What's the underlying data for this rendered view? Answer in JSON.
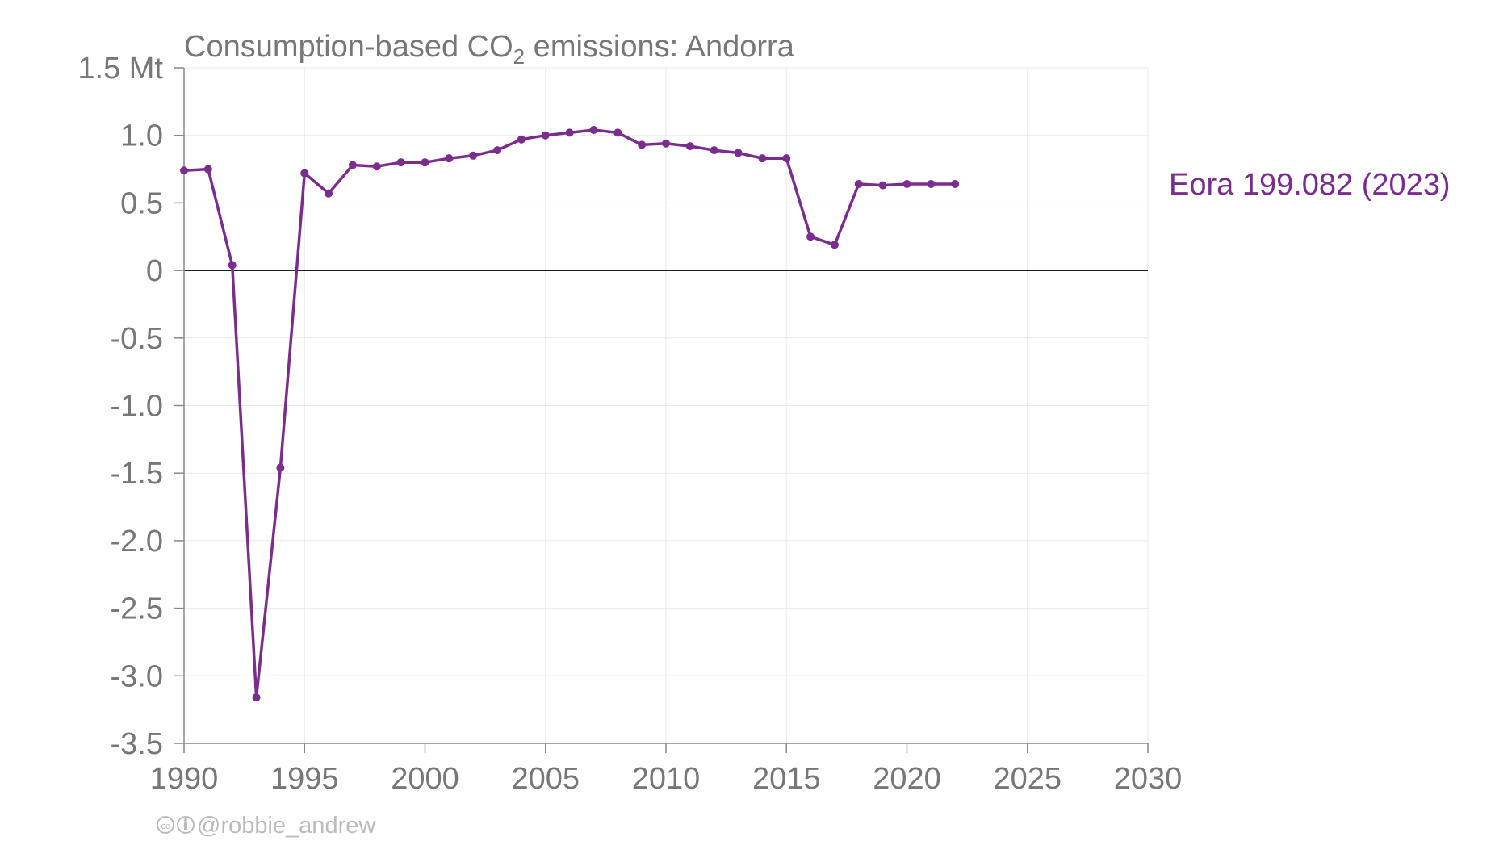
{
  "chart_data": {
    "type": "line",
    "title_prefix": "Consumption-based CO",
    "title_sub": "2",
    "title_suffix": " emissions: Andorra",
    "unit": "Mt",
    "xlim": [
      1990,
      2030
    ],
    "ylim": [
      -3.5,
      1.5
    ],
    "x_ticks": [
      1990,
      1995,
      2000,
      2005,
      2010,
      2015,
      2020,
      2025,
      2030
    ],
    "y_ticks": [
      {
        "value": 1.5,
        "label": "1.5 Mt"
      },
      {
        "value": 1.0,
        "label": "1.0"
      },
      {
        "value": 0.5,
        "label": "0.5"
      },
      {
        "value": 0,
        "label": "0"
      },
      {
        "value": -0.5,
        "label": "-0.5"
      },
      {
        "value": -1.0,
        "label": "-1.0"
      },
      {
        "value": -1.5,
        "label": "-1.5"
      },
      {
        "value": -2.0,
        "label": "-2.0"
      },
      {
        "value": -2.5,
        "label": "-2.5"
      },
      {
        "value": -3.0,
        "label": "-3.0"
      },
      {
        "value": -3.5,
        "label": "-3.5"
      }
    ],
    "grid": true,
    "series": [
      {
        "name": "Eora 199.082 (2023)",
        "color": "#7b2d8e",
        "x": [
          1990,
          1991,
          1992,
          1993,
          1994,
          1995,
          1996,
          1997,
          1998,
          1999,
          2000,
          2001,
          2002,
          2003,
          2004,
          2005,
          2006,
          2007,
          2008,
          2009,
          2010,
          2011,
          2012,
          2013,
          2014,
          2015,
          2016,
          2017,
          2018,
          2019,
          2020,
          2021,
          2022
        ],
        "y": [
          0.74,
          0.75,
          0.04,
          -3.16,
          -1.46,
          0.72,
          0.57,
          0.78,
          0.77,
          0.8,
          0.8,
          0.83,
          0.85,
          0.89,
          0.97,
          1.0,
          1.02,
          1.04,
          1.02,
          0.93,
          0.94,
          0.92,
          0.89,
          0.87,
          0.83,
          0.83,
          0.25,
          0.19,
          0.64,
          0.63,
          0.64,
          0.64,
          0.64
        ]
      }
    ]
  },
  "credit": "@robbie_andrew"
}
